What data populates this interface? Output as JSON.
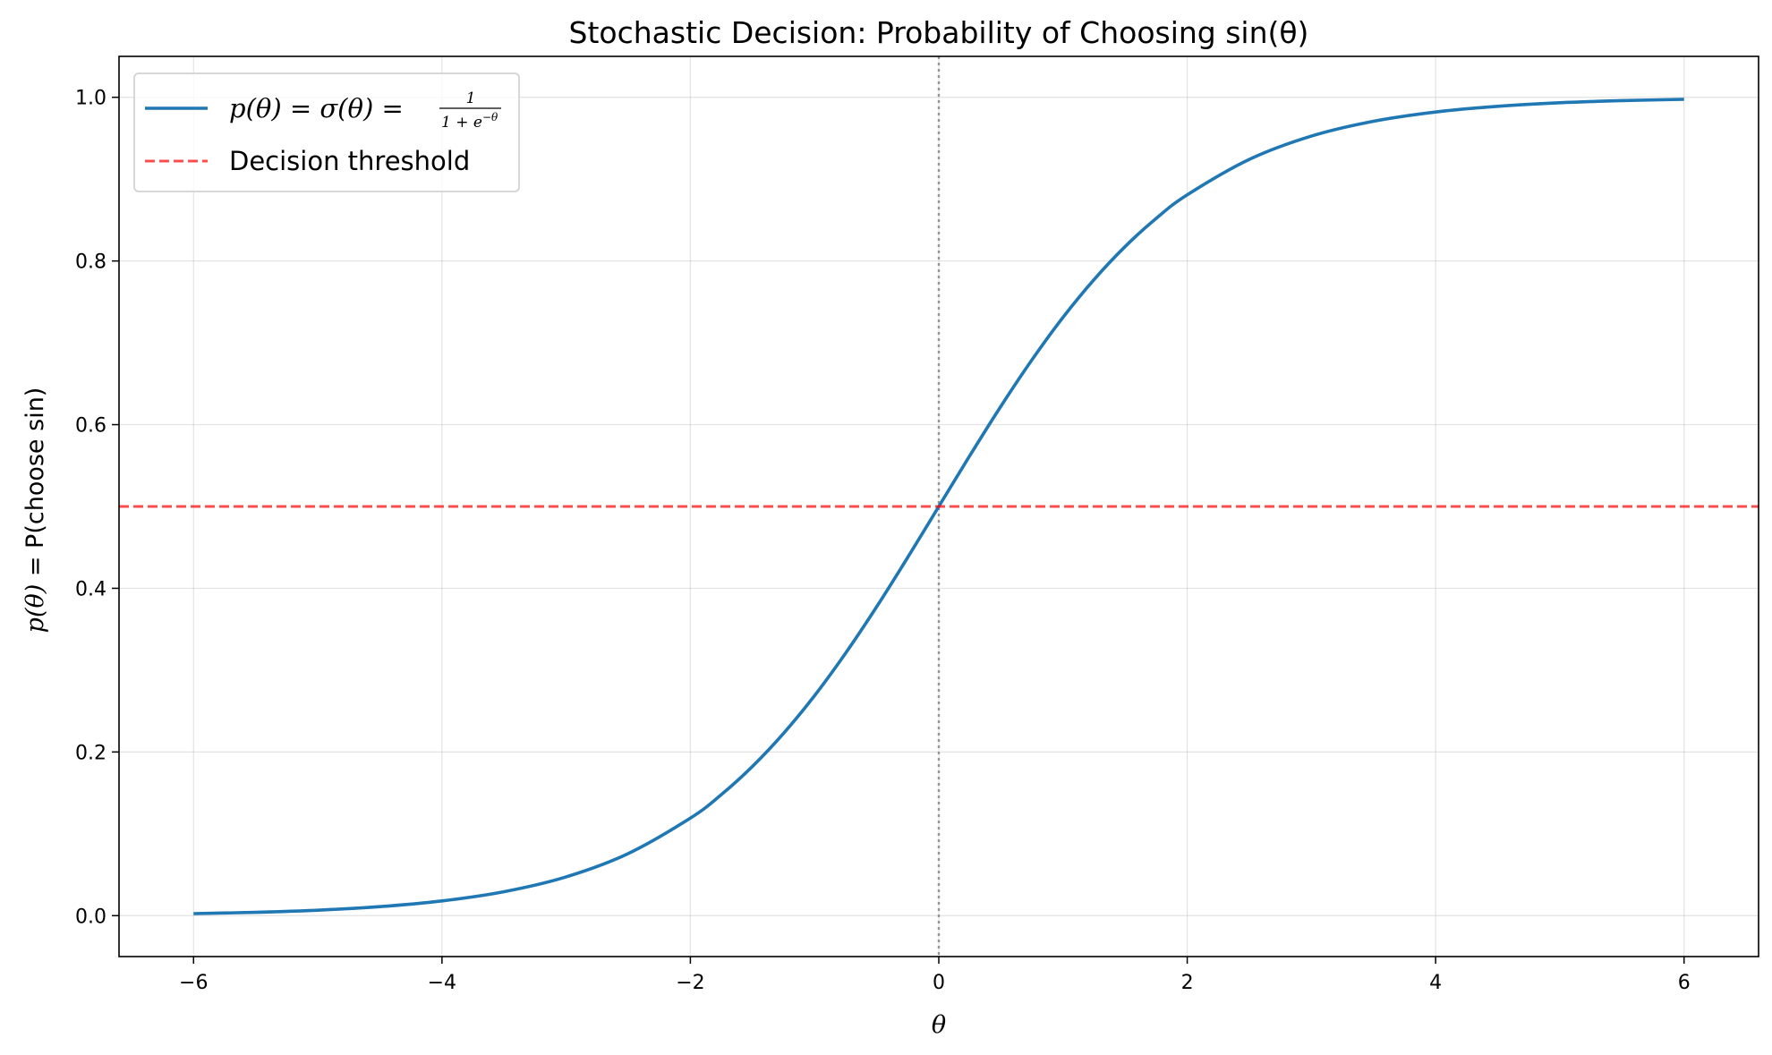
{
  "chart_data": {
    "type": "line",
    "title": "Stochastic Decision: Probability of Choosing sin(θ)",
    "xlabel": "θ",
    "ylabel_math": "p(θ)",
    "ylabel_text": " = P(choose sin)",
    "xlim": [
      -6.6,
      6.6
    ],
    "ylim": [
      -0.05,
      1.05
    ],
    "xticks": [
      -6,
      -4,
      -2,
      0,
      2,
      4,
      6
    ],
    "xtick_labels": [
      "−6",
      "−4",
      "−2",
      "0",
      "2",
      "4",
      "6"
    ],
    "yticks": [
      0.0,
      0.2,
      0.4,
      0.6,
      0.8,
      1.0
    ],
    "ytick_labels": [
      "0.0",
      "0.2",
      "0.4",
      "0.6",
      "0.8",
      "1.0"
    ],
    "grid": true,
    "legend_position": "top-left",
    "series": [
      {
        "name": "p(θ) = σ(θ) = 1/(1 + e^−θ)",
        "legend_lhs": "p(θ) = σ(θ) = ",
        "legend_num": "1",
        "legend_den": "1 + e",
        "legend_exp": "−θ",
        "color": "#1f77b4",
        "style": "solid",
        "x": [
          -6,
          -5.5,
          -5,
          -4.5,
          -4,
          -3.5,
          -3,
          -2.5,
          -2,
          -1.75,
          -1.5,
          -1.25,
          -1,
          -0.75,
          -0.5,
          -0.25,
          0,
          0.25,
          0.5,
          0.75,
          1,
          1.25,
          1.5,
          1.75,
          2,
          2.5,
          3,
          3.5,
          4,
          4.5,
          5,
          5.5,
          6
        ],
        "y": [
          0.0025,
          0.0041,
          0.0067,
          0.011,
          0.018,
          0.0293,
          0.0474,
          0.0759,
          0.1192,
          0.148,
          0.1824,
          0.2227,
          0.2689,
          0.3208,
          0.3775,
          0.4378,
          0.5,
          0.5622,
          0.6225,
          0.6792,
          0.7311,
          0.7773,
          0.8176,
          0.852,
          0.8808,
          0.9241,
          0.9526,
          0.9707,
          0.982,
          0.989,
          0.9933,
          0.9959,
          0.9975
        ]
      },
      {
        "name": "Decision threshold",
        "color": "#ff0000",
        "opacity": 0.7,
        "style": "dashed",
        "hline": 0.5
      }
    ],
    "vline": {
      "x": 0,
      "color": "#808080",
      "style": "dotted"
    }
  }
}
